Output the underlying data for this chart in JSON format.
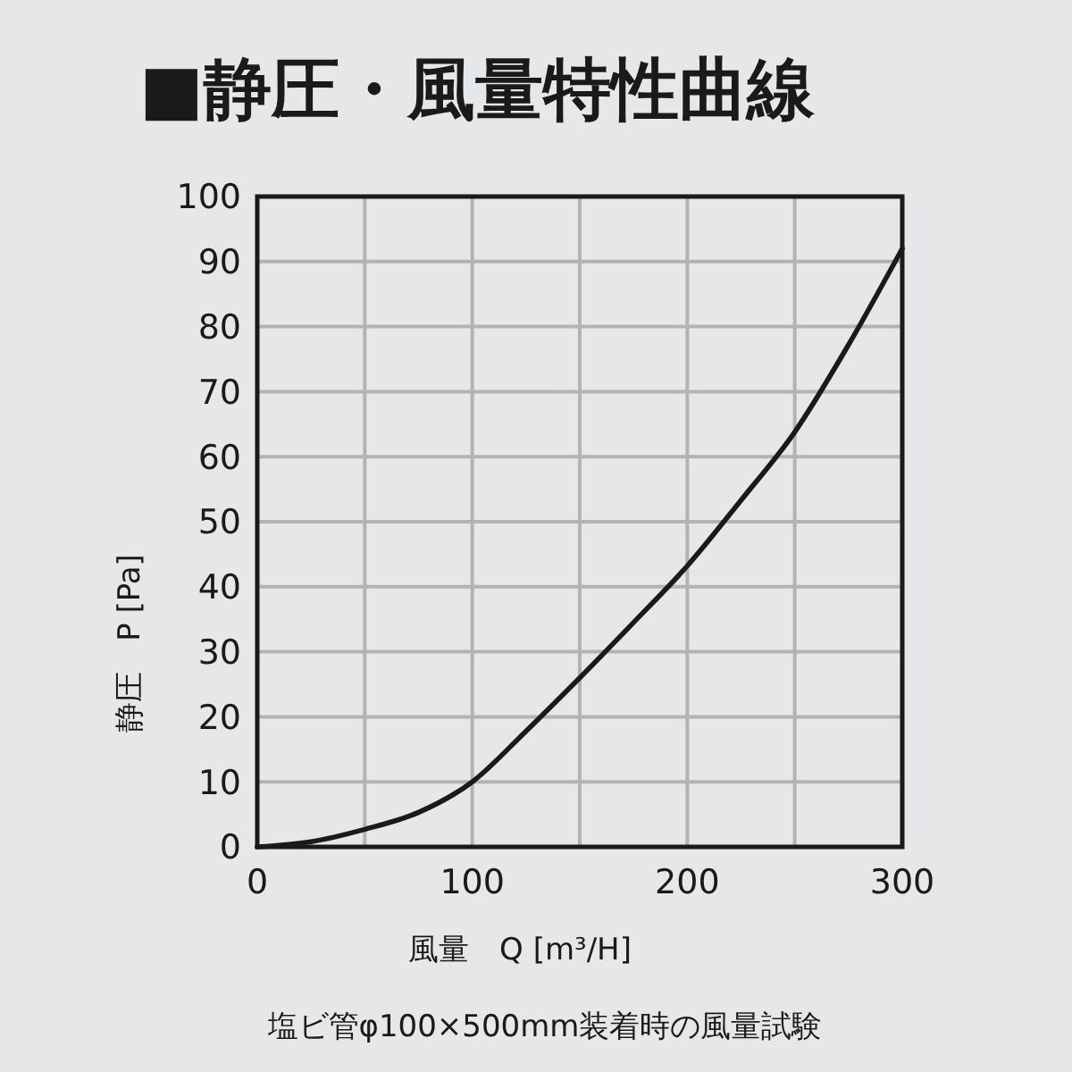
{
  "chart_data": {
    "type": "line",
    "title": "■静圧・風量特性曲線",
    "xlabel": "風量　Q [m³/H]",
    "ylabel": "静圧　P [Pa]",
    "annotations": [
      "塩ビ管φ100×500mm装着時の風量試験"
    ],
    "x": [
      0,
      25,
      50,
      75,
      100,
      125,
      150,
      175,
      200,
      225,
      250,
      275,
      300
    ],
    "series": [
      {
        "color": "#1a1a1a",
        "values": [
          0,
          0.8,
          2.7,
          5.3,
          10,
          17.8,
          26,
          34.5,
          43.2,
          53.3,
          63.8,
          77.2,
          92
        ]
      }
    ],
    "xlim": [
      0,
      300
    ],
    "ylim": [
      0,
      100
    ],
    "xticks": [
      0,
      {
        "value": 50,
        "label": null
      },
      100,
      {
        "value": 150,
        "label": null
      },
      200,
      {
        "value": 250,
        "label": null
      },
      300
    ],
    "yticks": [
      0,
      10,
      20,
      30,
      40,
      50,
      60,
      70,
      80,
      90,
      100
    ],
    "grid": true
  }
}
